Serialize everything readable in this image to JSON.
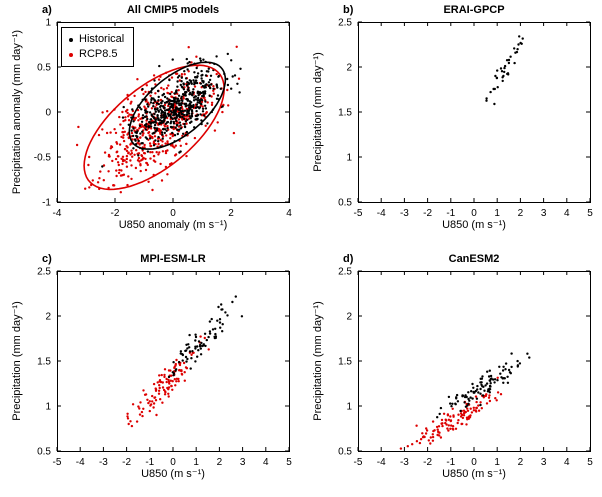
{
  "figure": {
    "background": "#ffffff",
    "text_color": "#000000"
  },
  "colors": {
    "historical": "#000000",
    "rcp85": "#dd0000",
    "axis": "#000000"
  },
  "chart_data": [
    {
      "panel_label": "a)",
      "type": "scatter",
      "title": "All CMIP5 models",
      "xlabel": "U850 anomaly (m s⁻¹)",
      "ylabel": "Precipitation anomaly (mm day⁻¹)",
      "xlim": [
        -4,
        4
      ],
      "ylim": [
        -1,
        1
      ],
      "xticks": [
        -4,
        -2,
        0,
        2,
        4
      ],
      "yticks": [
        -1,
        -0.5,
        0,
        0.5,
        1
      ],
      "grid": false,
      "legend": {
        "position": "top-left",
        "entries": [
          {
            "label": "Historical",
            "color": "#000000"
          },
          {
            "label": "RCP8.5",
            "color": "#dd0000"
          }
        ]
      },
      "series": [
        {
          "name": "RCP8.5",
          "color": "#dd0000",
          "marker": "dot",
          "n": 520,
          "dist": {
            "kind": "gauss2d",
            "cx": -0.65,
            "cy": -0.17,
            "sx": 1.05,
            "sy": 0.3,
            "rho": 0.62,
            "seed": 42
          },
          "ellipse_k": 2.3
        },
        {
          "name": "Historical",
          "color": "#000000",
          "marker": "dot",
          "n": 520,
          "dist": {
            "kind": "gauss2d",
            "cx": 0.15,
            "cy": 0.07,
            "sx": 0.72,
            "sy": 0.21,
            "rho": 0.6,
            "seed": 7
          },
          "ellipse_k": 2.3
        }
      ]
    },
    {
      "panel_label": "b)",
      "type": "scatter",
      "title": "ERAI-GPCP",
      "xlabel": "U850 (m s⁻¹)",
      "ylabel": "Precipitation (mm day⁻¹)",
      "xlim": [
        -5,
        5
      ],
      "ylim": [
        0.5,
        2.5
      ],
      "xticks": [
        -5,
        -4,
        -3,
        -2,
        -1,
        0,
        1,
        2,
        3,
        4,
        5
      ],
      "yticks": [
        0.5,
        1,
        1.5,
        2,
        2.5
      ],
      "grid": false,
      "series": [
        {
          "name": "ERAI-GPCP",
          "color": "#000000",
          "marker": "dot",
          "n": 36,
          "dist": {
            "kind": "linear",
            "xmin": -0.1,
            "xmax": 2.6,
            "slope": 0.38,
            "intercept": 1.47,
            "noise": 0.07,
            "seed": 3
          }
        }
      ]
    },
    {
      "panel_label": "c)",
      "type": "scatter",
      "title": "MPI-ESM-LR",
      "xlabel": "U850 (m s⁻¹)",
      "ylabel": "Precipitation (mm day⁻¹)",
      "xlim": [
        -5,
        5
      ],
      "ylim": [
        0.5,
        2.5
      ],
      "xticks": [
        -5,
        -4,
        -3,
        -2,
        -1,
        0,
        1,
        2,
        3,
        4,
        5
      ],
      "yticks": [
        0.5,
        1,
        1.5,
        2,
        2.5
      ],
      "grid": false,
      "series": [
        {
          "name": "RCP8.5",
          "color": "#dd0000",
          "marker": "dot",
          "n": 115,
          "dist": {
            "kind": "linear",
            "xmin": -2.2,
            "xmax": 1.7,
            "slope": 0.27,
            "intercept": 1.32,
            "noise": 0.08,
            "seed": 11
          }
        },
        {
          "name": "Historical",
          "color": "#000000",
          "marker": "dot",
          "n": 75,
          "dist": {
            "kind": "linear",
            "xmin": -0.3,
            "xmax": 3.2,
            "slope": 0.25,
            "intercept": 1.42,
            "noise": 0.08,
            "seed": 12
          }
        }
      ]
    },
    {
      "panel_label": "d)",
      "type": "scatter",
      "title": "CanESM2",
      "xlabel": "U850 (m s⁻¹)",
      "ylabel": "Precipitation (mm day⁻¹)",
      "xlim": [
        -5,
        5
      ],
      "ylim": [
        0.5,
        2.5
      ],
      "xticks": [
        -5,
        -4,
        -3,
        -2,
        -1,
        0,
        1,
        2,
        3,
        4,
        5
      ],
      "yticks": [
        0.5,
        1,
        1.5,
        2,
        2.5
      ],
      "grid": false,
      "series": [
        {
          "name": "RCP8.5",
          "color": "#dd0000",
          "marker": "dot",
          "n": 120,
          "dist": {
            "kind": "linear",
            "xmin": -3.3,
            "xmax": 1.7,
            "slope": 0.155,
            "intercept": 0.98,
            "noise": 0.07,
            "seed": 21
          }
        },
        {
          "name": "Historical",
          "color": "#000000",
          "marker": "dot",
          "n": 100,
          "dist": {
            "kind": "linear",
            "xmin": -1.7,
            "xmax": 2.6,
            "slope": 0.15,
            "intercept": 1.17,
            "noise": 0.06,
            "seed": 22
          }
        }
      ]
    }
  ]
}
